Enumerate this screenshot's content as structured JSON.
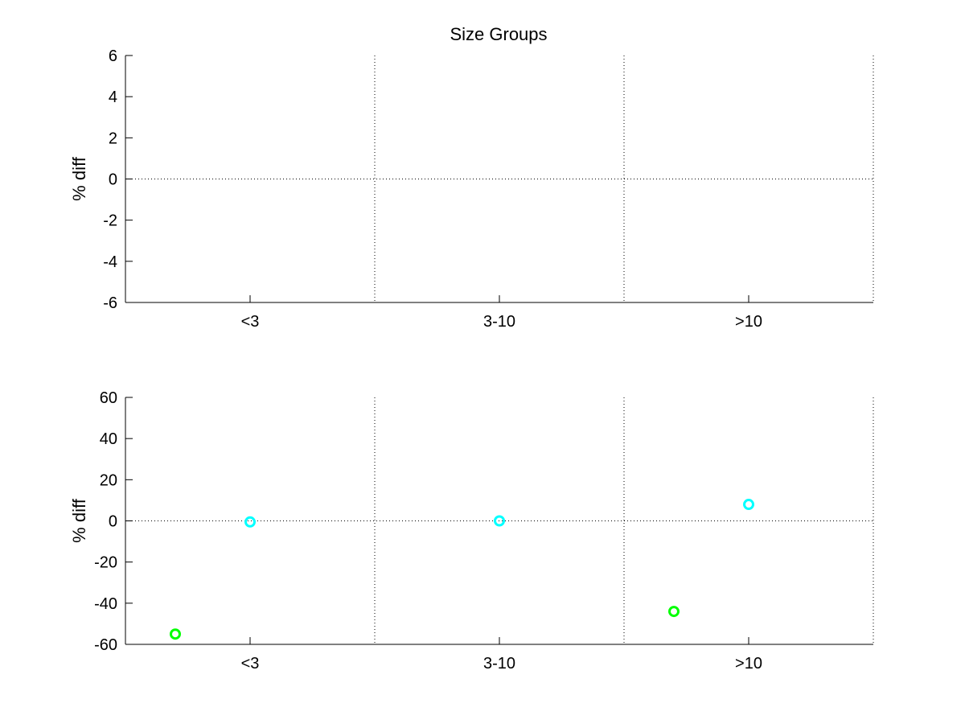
{
  "figure": {
    "title": "Size Groups"
  },
  "chart_data": [
    {
      "type": "scatter",
      "title": "Size Groups",
      "xlabel": "",
      "ylabel": "% diff",
      "categories": [
        "<3",
        "3-10",
        ">10"
      ],
      "xlim": [
        0,
        3
      ],
      "ylim": [
        -6,
        6
      ],
      "yticks": [
        -6,
        -4,
        -2,
        0,
        2,
        4,
        6
      ],
      "grid": "dotted vertical separators between groups and dotted zero line",
      "series": []
    },
    {
      "type": "scatter",
      "title": "",
      "xlabel": "",
      "ylabel": "% diff",
      "categories": [
        "<3",
        "3-10",
        ">10"
      ],
      "xlim": [
        0,
        3
      ],
      "ylim": [
        -60,
        60
      ],
      "yticks": [
        -60,
        -40,
        -20,
        0,
        20,
        40,
        60
      ],
      "grid": "dotted vertical separators between groups and dotted zero line",
      "series": [
        {
          "color": "#00ff00",
          "marker": "circle",
          "points": [
            {
              "x": 0.2,
              "y": -55
            },
            {
              "x": 2.2,
              "y": -44
            }
          ]
        },
        {
          "color": "#00ffff",
          "marker": "circle",
          "points": [
            {
              "x": 0.5,
              "y": -0.5
            },
            {
              "x": 1.5,
              "y": 0
            },
            {
              "x": 2.5,
              "y": 8
            }
          ]
        }
      ]
    }
  ]
}
